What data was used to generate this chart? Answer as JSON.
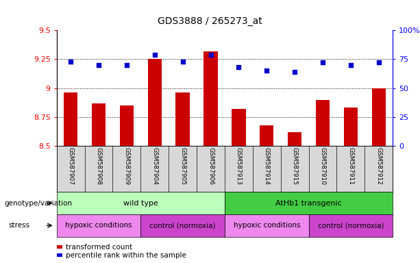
{
  "title": "GDS3888 / 265273_at",
  "samples": [
    "GSM587907",
    "GSM587908",
    "GSM587909",
    "GSM587904",
    "GSM587905",
    "GSM587906",
    "GSM587913",
    "GSM587914",
    "GSM587915",
    "GSM587910",
    "GSM587911",
    "GSM587912"
  ],
  "bar_values": [
    8.96,
    8.87,
    8.85,
    9.25,
    8.96,
    9.32,
    8.82,
    8.68,
    8.62,
    8.9,
    8.83,
    9.0
  ],
  "scatter_values": [
    73,
    70,
    70,
    79,
    73,
    79,
    68,
    65,
    64,
    72,
    70,
    72
  ],
  "ylim_left": [
    8.5,
    9.5
  ],
  "ylim_right": [
    0,
    100
  ],
  "yticks_left": [
    8.5,
    8.75,
    9.0,
    9.25,
    9.5
  ],
  "yticks_right": [
    0,
    25,
    50,
    75,
    100
  ],
  "hlines": [
    8.75,
    9.0,
    9.25
  ],
  "bar_color": "#cc0000",
  "scatter_color": "#0000cc",
  "bar_bottom": 8.5,
  "groups": [
    {
      "label": "wild type",
      "start": 0,
      "end": 6,
      "color": "#bbffbb"
    },
    {
      "label": "AtHb1 transgenic",
      "start": 6,
      "end": 12,
      "color": "#44cc44"
    }
  ],
  "stress_groups": [
    {
      "label": "hypoxic conditions",
      "start": 0,
      "end": 3,
      "color": "#ee88ee"
    },
    {
      "label": "control (normoxia)",
      "start": 3,
      "end": 6,
      "color": "#cc44cc"
    },
    {
      "label": "hypoxic conditions",
      "start": 6,
      "end": 9,
      "color": "#ee88ee"
    },
    {
      "label": "control (normoxia)",
      "start": 9,
      "end": 12,
      "color": "#cc44cc"
    }
  ],
  "legend_items": [
    {
      "label": "transformed count",
      "color": "#cc0000"
    },
    {
      "label": "percentile rank within the sample",
      "color": "#0000cc"
    }
  ],
  "genotype_label": "genotype/variation",
  "stress_label": "stress"
}
